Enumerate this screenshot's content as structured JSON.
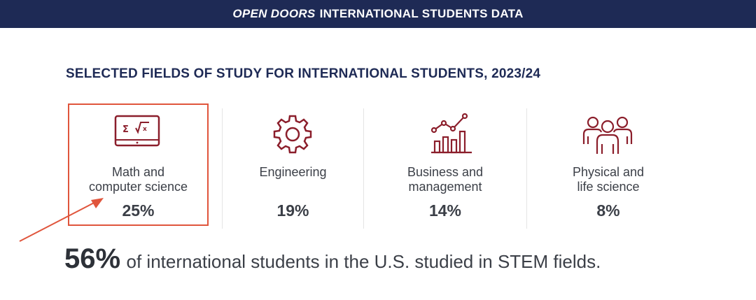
{
  "banner": {
    "italic": "OPEN DOORS",
    "title": "INTERNATIONAL STUDENTS DATA",
    "background": "#1e2a55"
  },
  "heading": "SELECTED FIELDS OF STUDY FOR INTERNATIONAL STUDENTS, 2023/24",
  "fields": [
    {
      "icon": "math-laptop-icon",
      "label_line1": "Math and",
      "label_line2": "computer science",
      "percent": "25%",
      "highlighted": true
    },
    {
      "icon": "gear-icon",
      "label_line1": "Engineering",
      "label_line2": "",
      "percent": "19%"
    },
    {
      "icon": "bar-chart-icon",
      "label_line1": "Business and",
      "label_line2": "management",
      "percent": "14%"
    },
    {
      "icon": "people-group-icon",
      "label_line1": "Physical and",
      "label_line2": "life science",
      "percent": "8%"
    }
  ],
  "summary": {
    "big": "56%",
    "rest": "of international students in the U.S. studied in STEM fields."
  },
  "colors": {
    "accent_dark_red": "#8b1e2b",
    "highlight_red": "#e0553c",
    "text": "#3b3f47"
  }
}
